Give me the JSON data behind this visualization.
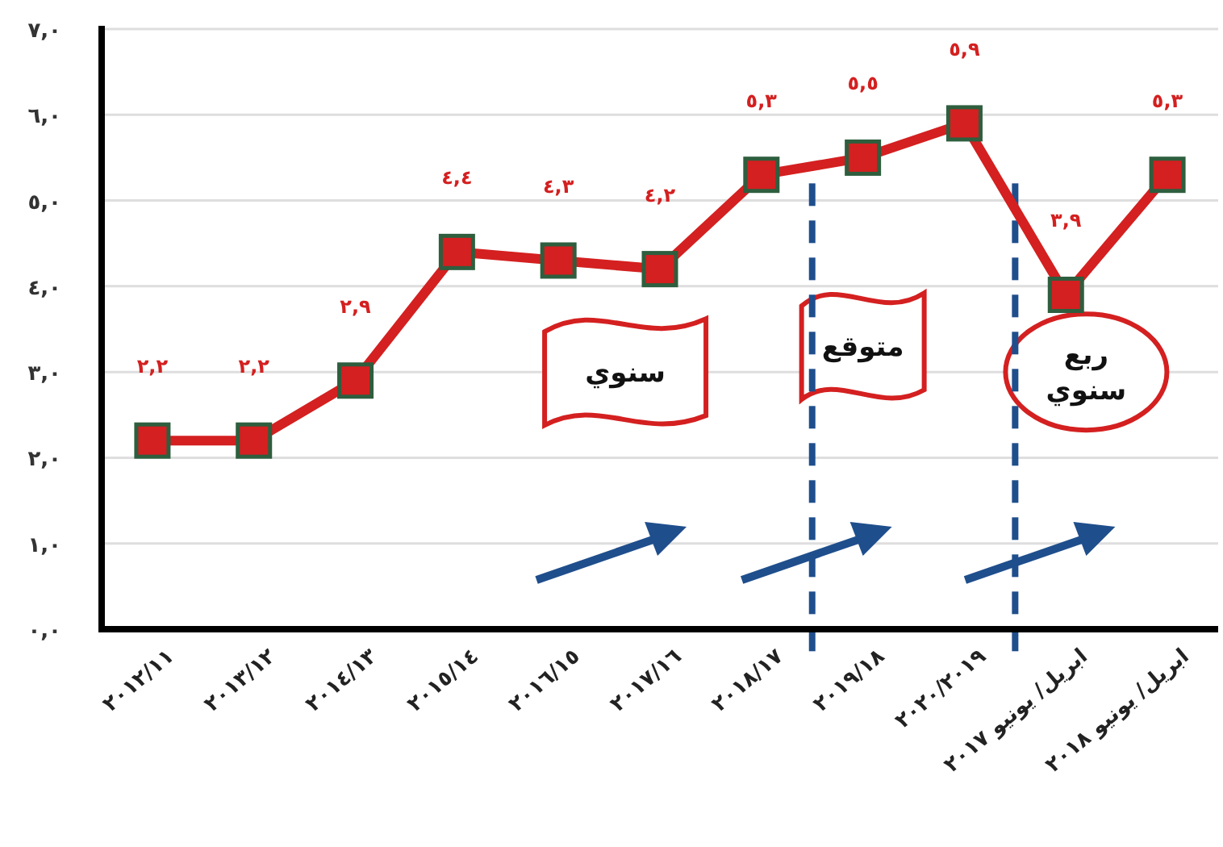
{
  "chart_data": {
    "type": "line",
    "categories": [
      "٢٠١٢/١١",
      "٢٠١٣/١٢",
      "٢٠١٤/١٣",
      "٢٠١٥/١٤",
      "٢٠١٦/١٥",
      "٢٠١٧/١٦",
      "٢٠١٨/١٧",
      "٢٠١٩/١٨",
      "٢٠٢٠/٢٠١٩",
      "ابريل/ يونيو ٢٠١٧",
      "ابريل/ يونيو ٢٠١٨"
    ],
    "series": [
      {
        "color": "#d42020",
        "values": [
          2.2,
          2.2,
          2.9,
          4.4,
          4.3,
          4.2,
          5.3,
          5.5,
          5.9,
          3.9,
          5.3
        ],
        "value_labels": [
          "٢,٢",
          "٢,٢",
          "٢,٩",
          "٤,٤",
          "٤,٣",
          "٤,٢",
          "٥,٣",
          "٥,٥",
          "٥,٩",
          "٣,٩",
          "٥,٣"
        ]
      }
    ],
    "ylim": [
      0,
      7
    ],
    "yticks": [
      {
        "value": 0,
        "label": "٠,٠"
      },
      {
        "value": 1,
        "label": "١,٠"
      },
      {
        "value": 2,
        "label": "٢,٠"
      },
      {
        "value": 3,
        "label": "٣,٠"
      },
      {
        "value": 4,
        "label": "٤,٠"
      },
      {
        "value": 5,
        "label": "٥,٠"
      },
      {
        "value": 6,
        "label": "٦,٠"
      },
      {
        "value": 7,
        "label": "٧,٠"
      }
    ],
    "grid": "y",
    "marker": "square",
    "line_style": "solid",
    "annotations": [
      "سنوي",
      "متوقع",
      "ربع سنوي"
    ]
  }
}
